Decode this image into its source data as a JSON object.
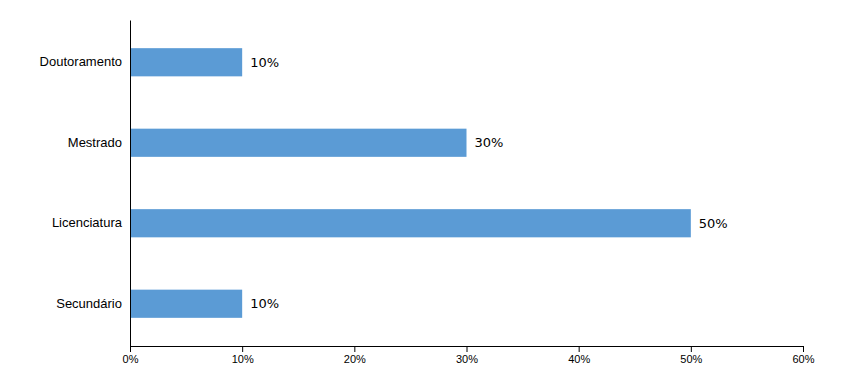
{
  "chart_data": {
    "type": "bar",
    "orientation": "horizontal",
    "categories": [
      "Secundário",
      "Licenciatura",
      "Mestrado",
      "Doutoramento"
    ],
    "values": [
      10,
      50,
      30,
      10
    ],
    "value_labels": [
      "10%",
      "50%",
      "30%",
      "10%"
    ],
    "data_labels": true,
    "color": "#5B9BD5",
    "xlim": [
      0,
      60
    ],
    "xticks": [
      {
        "value": 0,
        "label": "0%"
      },
      {
        "value": 10,
        "label": "10%"
      },
      {
        "value": 20,
        "label": "20%"
      },
      {
        "value": 30,
        "label": "30%"
      },
      {
        "value": 40,
        "label": "40%"
      },
      {
        "value": 50,
        "label": "50%"
      },
      {
        "value": 60,
        "label": "60%"
      }
    ],
    "grid": false
  }
}
